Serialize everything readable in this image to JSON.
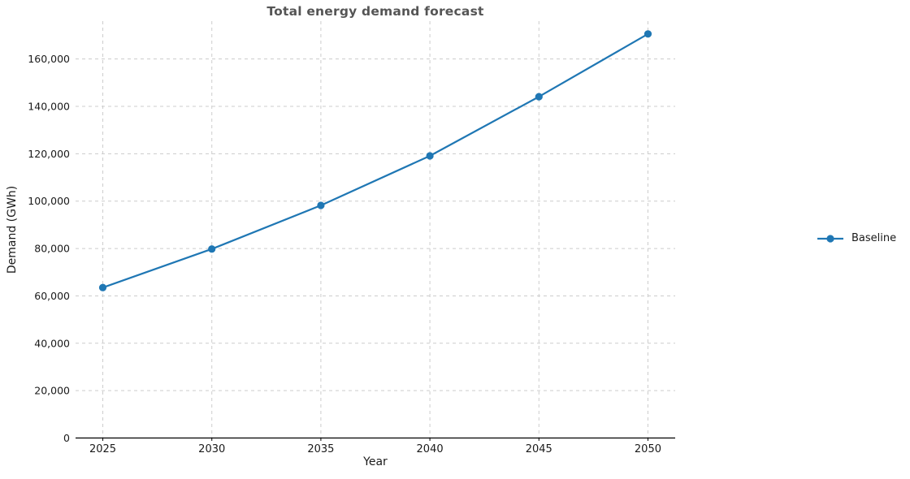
{
  "chart_data": {
    "type": "line",
    "title": "Total energy demand forecast",
    "title_color": "#555555",
    "xlabel": "Year",
    "ylabel": "Demand (GWh)",
    "x": [
      2025,
      2030,
      2035,
      2040,
      2045,
      2050
    ],
    "series": [
      {
        "name": "Baseline",
        "color": "#1f77b4",
        "marker": "circle",
        "values": [
          63500,
          79800,
          98200,
          119100,
          144100,
          170600
        ]
      }
    ],
    "xlim": [
      2023.75,
      2051.25
    ],
    "ylim": [
      0,
      176000
    ],
    "xticks": {
      "values": [
        2025,
        2030,
        2035,
        2040,
        2045,
        2050
      ],
      "labels": [
        "2025",
        "2030",
        "2035",
        "2040",
        "2045",
        "2050"
      ]
    },
    "yticks": {
      "values": [
        0,
        20000,
        40000,
        60000,
        80000,
        100000,
        120000,
        140000,
        160000
      ],
      "labels": [
        "0",
        "20,000",
        "40,000",
        "60,000",
        "80,000",
        "100,000",
        "120,000",
        "140,000",
        "160,000"
      ]
    },
    "grid": {
      "visible": true,
      "style": "dashed",
      "color": "#cccccc"
    },
    "axis": {
      "spine_color": "#000000",
      "tick_label_color": "#1a1a1a"
    },
    "legend": {
      "position": "right-outside",
      "entries": [
        "Baseline"
      ]
    }
  }
}
